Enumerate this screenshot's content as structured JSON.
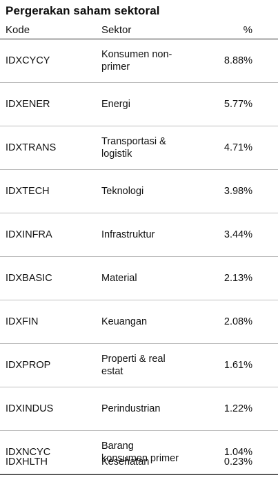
{
  "title": "Pergerakan saham sektoral",
  "columns": {
    "kode": "Kode",
    "sektor": "Sektor",
    "pct": "%"
  },
  "rows": [
    {
      "kode": "IDXCYCY",
      "sektor": "Konsumen non-primer",
      "pct": "8.88%"
    },
    {
      "kode": "IDXENER",
      "sektor": "Energi",
      "pct": "5.77%"
    },
    {
      "kode": "IDXTRANS",
      "sektor": "Transportasi & logistik",
      "pct": "4.71%"
    },
    {
      "kode": "IDXTECH",
      "sektor": "Teknologi",
      "pct": "3.98%"
    },
    {
      "kode": "IDXINFRA",
      "sektor": "Infrastruktur",
      "pct": "3.44%"
    },
    {
      "kode": "IDXBASIC",
      "sektor": "Material",
      "pct": "2.13%"
    },
    {
      "kode": "IDXFIN",
      "sektor": "Keuangan",
      "pct": "2.08%"
    },
    {
      "kode": "IDXPROP",
      "sektor": "Properti & real estat",
      "pct": "1.61%"
    },
    {
      "kode": "IDXINDUS",
      "sektor": "Perindustrian",
      "pct": "1.22%"
    },
    {
      "kode": "IDXNCYC",
      "sektor": "Barang konsumen primer",
      "pct": "1.04%"
    },
    {
      "kode": "IDXHLTH",
      "sektor": "Kesehatan",
      "pct": "0.23%"
    }
  ]
}
